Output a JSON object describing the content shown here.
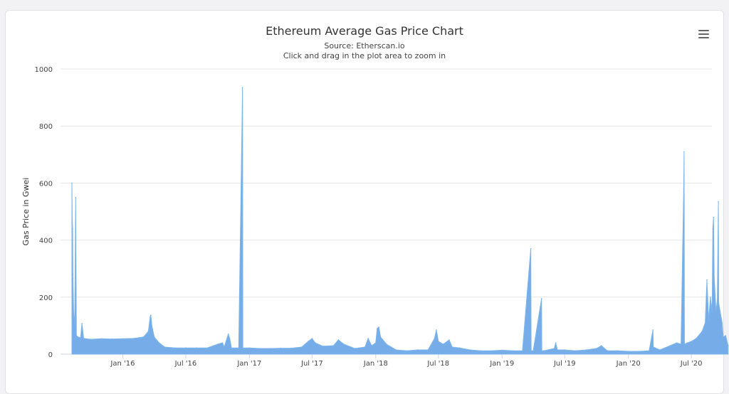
{
  "title": "Ethereum Average Gas Price Chart",
  "subtitle": "Source: Etherscan.io",
  "subtitle2": "Click and drag in the plot area to zoom in",
  "menu_icon": "hamburger-menu-icon",
  "colors": {
    "series": "#7cb5ec",
    "series_fill": "#6fa8e6",
    "grid": "#e6e6e6",
    "axis_text": "#444444"
  },
  "chart_data": {
    "type": "area",
    "title": "Ethereum Average Gas Price Chart",
    "ylabel": "Gas Price in Gwei",
    "ylim": [
      0,
      1000
    ],
    "yticks": [
      "0",
      "200",
      "400",
      "600",
      "800",
      "1000"
    ],
    "xrange": [
      "2015-08-07",
      "2020-10-15"
    ],
    "xticks": [
      {
        "date": "2016-01-01",
        "label": "Jan '16"
      },
      {
        "date": "2016-07-01",
        "label": "Jul '16"
      },
      {
        "date": "2017-01-01",
        "label": "Jan '17"
      },
      {
        "date": "2017-07-01",
        "label": "Jul '17"
      },
      {
        "date": "2018-01-01",
        "label": "Jan '18"
      },
      {
        "date": "2018-07-01",
        "label": "Jul '18"
      },
      {
        "date": "2019-01-01",
        "label": "Jan '19"
      },
      {
        "date": "2019-07-01",
        "label": "Jul '19"
      },
      {
        "date": "2020-01-01",
        "label": "Jan '20"
      },
      {
        "date": "2020-07-01",
        "label": "Jul '20"
      }
    ],
    "grid": true,
    "legend": "none",
    "series": [
      {
        "points": [
          [
            "2015-08-07",
            600
          ],
          [
            "2015-08-08",
            470
          ],
          [
            "2015-08-09",
            440
          ],
          [
            "2015-08-10",
            265
          ],
          [
            "2015-08-12",
            150
          ],
          [
            "2015-08-15",
            95
          ],
          [
            "2015-08-18",
            550
          ],
          [
            "2015-08-20",
            65
          ],
          [
            "2015-08-25",
            60
          ],
          [
            "2015-09-01",
            58
          ],
          [
            "2015-09-05",
            108
          ],
          [
            "2015-09-10",
            55
          ],
          [
            "2015-10-01",
            52
          ],
          [
            "2015-11-01",
            54
          ],
          [
            "2015-12-01",
            53
          ],
          [
            "2016-01-01",
            54
          ],
          [
            "2016-02-01",
            55
          ],
          [
            "2016-03-01",
            60
          ],
          [
            "2016-03-15",
            80
          ],
          [
            "2016-03-20",
            130
          ],
          [
            "2016-03-22",
            137
          ],
          [
            "2016-03-25",
            100
          ],
          [
            "2016-04-01",
            60
          ],
          [
            "2016-04-15",
            40
          ],
          [
            "2016-05-01",
            25
          ],
          [
            "2016-06-01",
            22
          ],
          [
            "2016-07-01",
            22
          ],
          [
            "2016-08-01",
            22
          ],
          [
            "2016-09-01",
            22
          ],
          [
            "2016-10-01",
            35
          ],
          [
            "2016-10-15",
            40
          ],
          [
            "2016-10-20",
            25
          ],
          [
            "2016-11-01",
            70
          ],
          [
            "2016-11-05",
            55
          ],
          [
            "2016-11-10",
            22
          ],
          [
            "2016-12-01",
            22
          ],
          [
            "2016-12-12",
            935
          ],
          [
            "2016-12-13",
            22
          ],
          [
            "2017-01-01",
            22
          ],
          [
            "2017-02-01",
            20
          ],
          [
            "2017-03-01",
            20
          ],
          [
            "2017-04-01",
            21
          ],
          [
            "2017-05-01",
            21
          ],
          [
            "2017-06-01",
            25
          ],
          [
            "2017-06-20",
            45
          ],
          [
            "2017-07-01",
            55
          ],
          [
            "2017-07-10",
            40
          ],
          [
            "2017-08-01",
            28
          ],
          [
            "2017-09-01",
            30
          ],
          [
            "2017-09-15",
            50
          ],
          [
            "2017-10-01",
            35
          ],
          [
            "2017-11-01",
            20
          ],
          [
            "2017-12-01",
            25
          ],
          [
            "2017-12-10",
            55
          ],
          [
            "2017-12-20",
            30
          ],
          [
            "2018-01-01",
            40
          ],
          [
            "2018-01-05",
            90
          ],
          [
            "2018-01-10",
            95
          ],
          [
            "2018-01-15",
            60
          ],
          [
            "2018-02-01",
            35
          ],
          [
            "2018-03-01",
            15
          ],
          [
            "2018-04-01",
            12
          ],
          [
            "2018-05-01",
            15
          ],
          [
            "2018-06-01",
            15
          ],
          [
            "2018-06-20",
            55
          ],
          [
            "2018-06-25",
            85
          ],
          [
            "2018-07-01",
            45
          ],
          [
            "2018-07-15",
            35
          ],
          [
            "2018-08-01",
            50
          ],
          [
            "2018-08-10",
            25
          ],
          [
            "2018-09-01",
            22
          ],
          [
            "2018-10-01",
            15
          ],
          [
            "2018-11-01",
            12
          ],
          [
            "2018-12-01",
            12
          ],
          [
            "2019-01-01",
            14
          ],
          [
            "2019-02-01",
            12
          ],
          [
            "2019-03-01",
            12
          ],
          [
            "2019-03-25",
            370
          ],
          [
            "2019-03-26",
            12
          ],
          [
            "2019-04-01",
            12
          ],
          [
            "2019-04-25",
            195
          ],
          [
            "2019-04-26",
            12
          ],
          [
            "2019-05-01",
            12
          ],
          [
            "2019-06-01",
            20
          ],
          [
            "2019-06-05",
            40
          ],
          [
            "2019-06-10",
            15
          ],
          [
            "2019-07-01",
            15
          ],
          [
            "2019-08-01",
            12
          ],
          [
            "2019-09-01",
            15
          ],
          [
            "2019-10-01",
            20
          ],
          [
            "2019-10-15",
            30
          ],
          [
            "2019-11-01",
            12
          ],
          [
            "2019-12-01",
            12
          ],
          [
            "2020-01-01",
            10
          ],
          [
            "2020-02-01",
            10
          ],
          [
            "2020-03-01",
            12
          ],
          [
            "2020-03-12",
            85
          ],
          [
            "2020-03-13",
            25
          ],
          [
            "2020-04-01",
            15
          ],
          [
            "2020-05-01",
            30
          ],
          [
            "2020-05-20",
            40
          ],
          [
            "2020-06-01",
            35
          ],
          [
            "2020-06-09",
            580
          ],
          [
            "2020-06-10",
            710
          ],
          [
            "2020-06-11",
            35
          ],
          [
            "2020-06-20",
            40
          ],
          [
            "2020-07-01",
            45
          ],
          [
            "2020-07-15",
            55
          ],
          [
            "2020-08-01",
            80
          ],
          [
            "2020-08-10",
            110
          ],
          [
            "2020-08-15",
            260
          ],
          [
            "2020-08-20",
            120
          ],
          [
            "2020-08-25",
            200
          ],
          [
            "2020-08-30",
            150
          ],
          [
            "2020-09-01",
            440
          ],
          [
            "2020-09-03",
            480
          ],
          [
            "2020-09-05",
            270
          ],
          [
            "2020-09-10",
            150
          ],
          [
            "2020-09-14",
            190
          ],
          [
            "2020-09-17",
            535
          ],
          [
            "2020-09-18",
            180
          ],
          [
            "2020-09-22",
            150
          ],
          [
            "2020-09-28",
            110
          ],
          [
            "2020-10-01",
            60
          ],
          [
            "2020-10-08",
            65
          ],
          [
            "2020-10-15",
            30
          ]
        ]
      }
    ]
  }
}
